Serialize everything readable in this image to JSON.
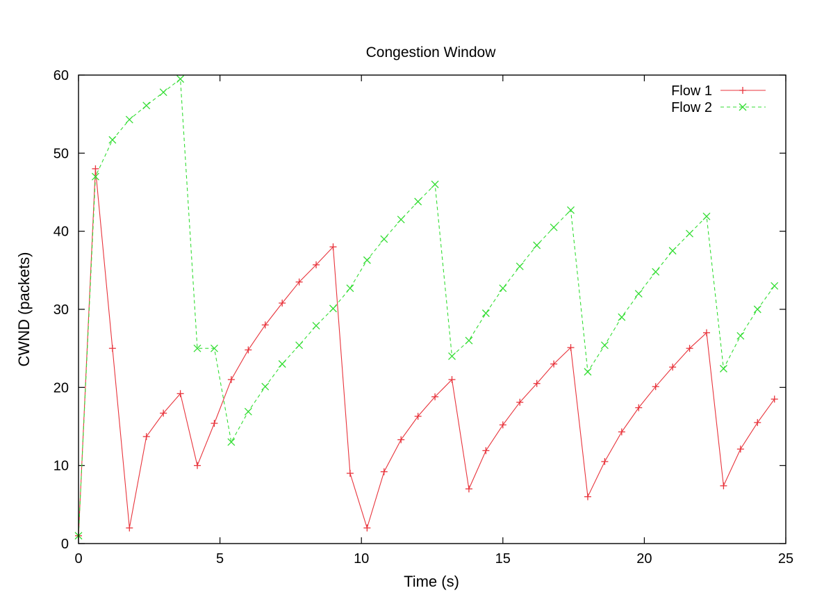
{
  "chart_data": {
    "type": "line",
    "title": "Congestion Window",
    "xlabel": "Time (s)",
    "ylabel": "CWND (packets)",
    "xlim": [
      0,
      25
    ],
    "ylim": [
      0,
      60
    ],
    "xticks": [
      0,
      5,
      10,
      15,
      20,
      25
    ],
    "yticks": [
      0,
      10,
      20,
      30,
      40,
      50,
      60
    ],
    "grid": false,
    "legend_position": "top-right",
    "series": [
      {
        "name": "Flow 1",
        "color": "#e8333b",
        "line_style": "solid",
        "marker": "plus",
        "x": [
          0,
          0.6,
          1.2,
          1.8,
          2.4,
          3.0,
          3.6,
          4.2,
          4.8,
          5.4,
          6.0,
          6.6,
          7.2,
          7.8,
          8.4,
          9.0,
          9.6,
          10.2,
          10.8,
          11.4,
          12.0,
          12.6,
          13.2,
          13.8,
          14.4,
          15.0,
          15.6,
          16.2,
          16.8,
          17.4,
          18.0,
          18.6,
          19.2,
          19.8,
          20.4,
          21.0,
          21.6,
          22.2,
          22.8,
          23.4,
          24.0,
          24.6
        ],
        "y": [
          1,
          48,
          25,
          2,
          13.7,
          16.7,
          19.2,
          10,
          15.4,
          21,
          24.8,
          28,
          30.8,
          33.5,
          35.7,
          38,
          9,
          2,
          9.2,
          13.3,
          16.3,
          18.8,
          21,
          7,
          11.9,
          15.2,
          18.1,
          20.5,
          23,
          25.1,
          6,
          10.5,
          14.3,
          17.4,
          20.1,
          22.6,
          25,
          27,
          7.4,
          12.1,
          15.5,
          18.5
        ]
      },
      {
        "name": "Flow 2",
        "color": "#33dd33",
        "line_style": "dashed",
        "marker": "x",
        "x": [
          0,
          0.6,
          1.2,
          1.8,
          2.4,
          3.0,
          3.6,
          4.2,
          4.8,
          5.4,
          6.0,
          6.6,
          7.2,
          7.8,
          8.4,
          9.0,
          9.6,
          10.2,
          10.8,
          11.4,
          12.0,
          12.6,
          13.2,
          13.8,
          14.4,
          15.0,
          15.6,
          16.2,
          16.8,
          17.4,
          18.0,
          18.6,
          19.2,
          19.8,
          20.4,
          21.0,
          21.6,
          22.2,
          22.8,
          23.4,
          24.0,
          24.6
        ],
        "y": [
          1,
          47,
          51.7,
          54.3,
          56.1,
          57.8,
          59.5,
          25,
          25,
          13,
          16.9,
          20.1,
          23,
          25.4,
          27.9,
          30.1,
          32.7,
          36.3,
          39,
          41.5,
          43.8,
          46,
          24,
          26,
          29.5,
          32.7,
          35.5,
          38.2,
          40.5,
          42.7,
          22,
          25.4,
          29,
          32,
          34.8,
          37.5,
          39.7,
          41.9,
          22.4,
          26.6,
          30,
          33
        ]
      }
    ]
  }
}
